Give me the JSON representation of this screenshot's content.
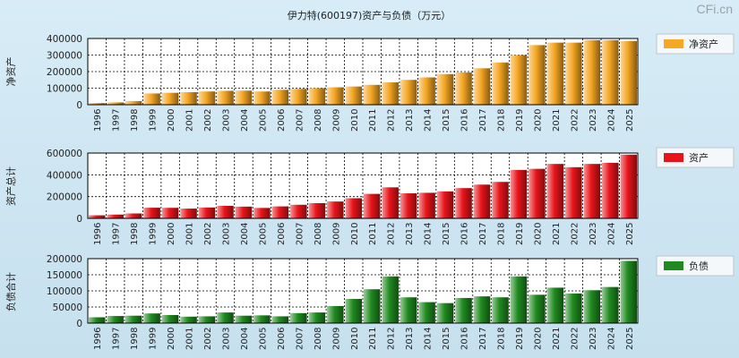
{
  "title": "伊力特(600197)资产与负债（万元）",
  "watermark": "CFi.cn",
  "chart_data": [
    {
      "type": "bar",
      "key": "equity",
      "title": "伊力特(600197)资产与负债（万元）",
      "ylabel": "净资产",
      "legend": "净资产",
      "color": "#f5a623",
      "ylim": [
        0,
        400000
      ],
      "yticks": [
        0,
        100000,
        200000,
        300000,
        400000
      ],
      "categories": [
        "1996",
        "1997",
        "1998",
        "1999",
        "2000",
        "2001",
        "2002",
        "2003",
        "2004",
        "2005",
        "2006",
        "2007",
        "2008",
        "2009",
        "2010",
        "2011",
        "2012",
        "2013",
        "2014",
        "2015",
        "2016",
        "2017",
        "2018",
        "2019",
        "2020",
        "2021",
        "2022",
        "2023",
        "2024",
        "2025"
      ],
      "values": [
        10000,
        14000,
        22000,
        68000,
        72000,
        76000,
        80000,
        84000,
        85000,
        80000,
        90000,
        96000,
        100000,
        105000,
        110000,
        120000,
        135000,
        150000,
        165000,
        185000,
        195000,
        220000,
        255000,
        300000,
        360000,
        375000,
        375000,
        390000,
        390000,
        385000
      ]
    },
    {
      "type": "bar",
      "key": "assets",
      "ylabel": "资产总计",
      "legend": "资产",
      "color": "#e8141a",
      "ylim": [
        0,
        600000
      ],
      "yticks": [
        0,
        200000,
        400000,
        600000
      ],
      "categories": [
        "1996",
        "1997",
        "1998",
        "1999",
        "2000",
        "2001",
        "2002",
        "2003",
        "2004",
        "2005",
        "2006",
        "2007",
        "2008",
        "2009",
        "2010",
        "2011",
        "2012",
        "2013",
        "2014",
        "2015",
        "2016",
        "2017",
        "2018",
        "2019",
        "2020",
        "2021",
        "2022",
        "2023",
        "2024",
        "2025"
      ],
      "values": [
        28000,
        35000,
        45000,
        98000,
        97000,
        90000,
        100000,
        115000,
        108000,
        96000,
        110000,
        125000,
        140000,
        155000,
        185000,
        225000,
        285000,
        230000,
        235000,
        248000,
        278000,
        310000,
        335000,
        445000,
        455000,
        500000,
        470000,
        500000,
        510000,
        585000
      ]
    },
    {
      "type": "bar",
      "key": "liabilities",
      "ylabel": "负债合计",
      "legend": "负债",
      "color": "#1f8a1f",
      "ylim": [
        0,
        200000
      ],
      "yticks": [
        0,
        50000,
        100000,
        150000,
        200000
      ],
      "categories": [
        "1996",
        "1997",
        "1998",
        "1999",
        "2000",
        "2001",
        "2002",
        "2003",
        "2004",
        "2005",
        "2006",
        "2007",
        "2008",
        "2009",
        "2010",
        "2011",
        "2012",
        "2013",
        "2014",
        "2015",
        "2016",
        "2017",
        "2018",
        "2019",
        "2020",
        "2021",
        "2022",
        "2023",
        "2024",
        "2025"
      ],
      "values": [
        18000,
        22000,
        23000,
        30000,
        25000,
        20000,
        21000,
        33000,
        23000,
        24000,
        21000,
        31000,
        33000,
        53000,
        75000,
        105000,
        145000,
        80000,
        65000,
        62000,
        78000,
        83000,
        80000,
        145000,
        88000,
        110000,
        92000,
        102000,
        112000,
        193000
      ]
    }
  ]
}
